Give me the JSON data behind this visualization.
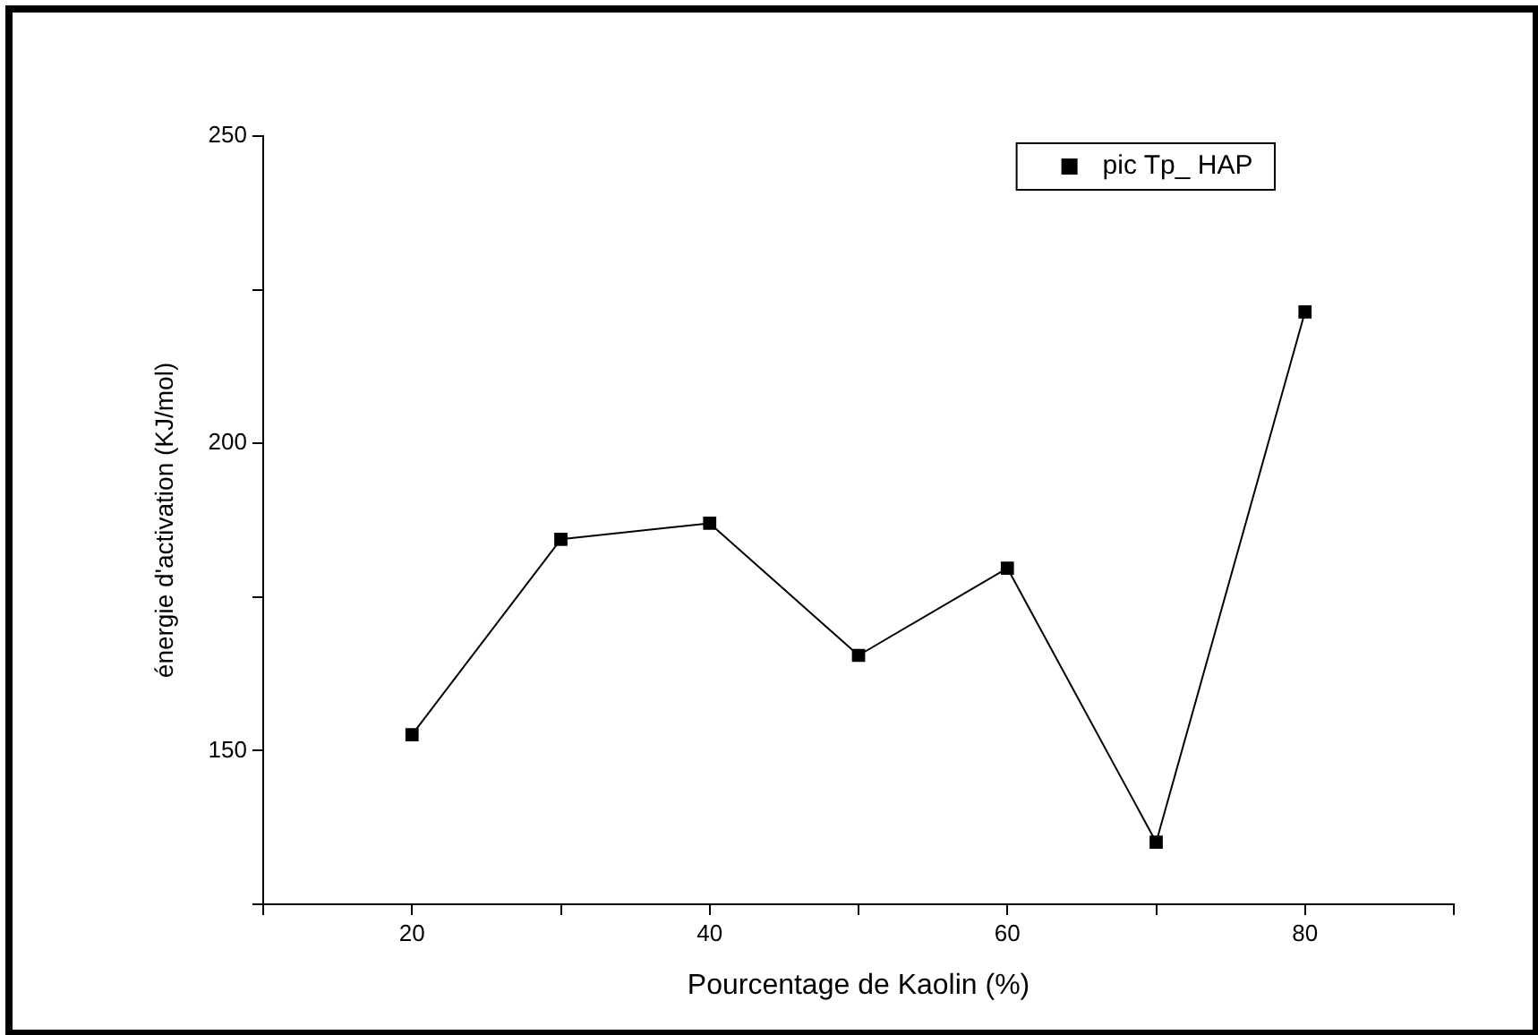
{
  "chart_data": {
    "type": "line",
    "xlabel": "Pourcentage de Kaolin (%)",
    "ylabel": "énergie d'activation (KJ/mol)",
    "x": [
      20,
      30,
      40,
      50,
      60,
      70,
      80
    ],
    "series": [
      {
        "name": "pic Tp_ HAP",
        "color": "#000000",
        "values": [
          152.6,
          184.4,
          187.0,
          165.5,
          179.7,
          135.1,
          221.4
        ]
      }
    ],
    "xlim": [
      10,
      90
    ],
    "xticks": [
      20,
      40,
      60,
      80,
      {
        "value": 10,
        "label": null
      },
      {
        "value": 30,
        "label": null
      },
      {
        "value": 50,
        "label": null
      },
      {
        "value": 70,
        "label": null
      },
      {
        "value": 90,
        "label": null
      }
    ],
    "ylim": [
      125,
      250
    ],
    "yticks": [
      150,
      200,
      250,
      {
        "value": 125,
        "label": null
      },
      {
        "value": 175,
        "label": null
      },
      {
        "value": 225,
        "label": null
      }
    ],
    "marker": "square",
    "line_style": "solid",
    "legend": "top right"
  }
}
